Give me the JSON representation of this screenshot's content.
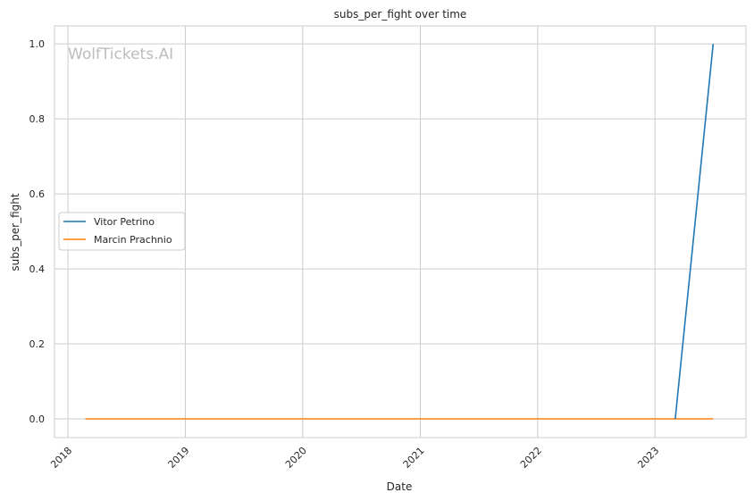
{
  "chart_data": {
    "type": "line",
    "title": "subs_per_fight over time",
    "xlabel": "Date",
    "ylabel": "subs_per_fight",
    "watermark": "WolfTickets.AI",
    "xlim": [
      "2017-11-20",
      "2023-10-11"
    ],
    "ylim": [
      -0.05,
      1.048
    ],
    "x_ticks": [
      "2018",
      "2019",
      "2020",
      "2021",
      "2022",
      "2023"
    ],
    "y_ticks": [
      "0.0",
      "0.2",
      "0.4",
      "0.6",
      "0.8",
      "1.0"
    ],
    "grid": true,
    "legend_position": "center-left",
    "series": [
      {
        "name": "Vitor Petrino",
        "color": "#1f77b4",
        "points": [
          {
            "x": "2023-03-05",
            "y": 0.0
          },
          {
            "x": "2023-07-01",
            "y": 1.0
          }
        ]
      },
      {
        "name": "Marcin Prachnio",
        "color": "#ff7f0e",
        "points": [
          {
            "x": "2018-02-24",
            "y": 0.0
          },
          {
            "x": "2023-07-01",
            "y": 0.0
          }
        ]
      }
    ]
  }
}
